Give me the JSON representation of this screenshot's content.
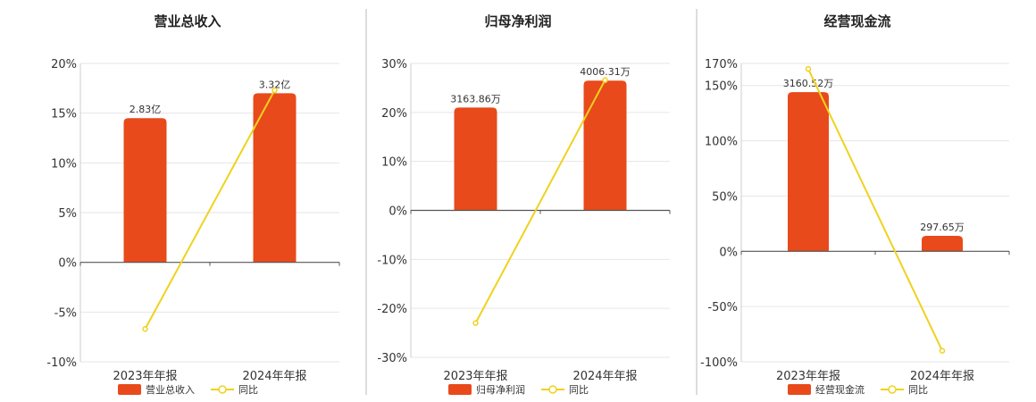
{
  "colors": {
    "bar": "#e84a1b",
    "line": "#f0d21e",
    "grid": "#e6e6e6",
    "axis": "#555555",
    "separator": "#bbbbbb"
  },
  "legend_line_label": "同比",
  "chart_data": [
    {
      "type": "bar",
      "title": "营业总收入",
      "categories": [
        "2023年年报",
        "2024年年报"
      ],
      "ylim": [
        -10,
        20
      ],
      "yticks": [
        -10,
        -5,
        0,
        5,
        10,
        15,
        20
      ],
      "ytick_labels": [
        "-10%",
        "-5%",
        "0%",
        "5%",
        "10%",
        "15%",
        "20%"
      ],
      "series": [
        {
          "name": "营业总收入",
          "kind": "bar",
          "values": [
            14.5,
            17.0
          ],
          "labels": [
            "2.83亿",
            "3.32亿"
          ]
        },
        {
          "name": "同比",
          "kind": "line",
          "values": [
            -6.7,
            17.3
          ]
        }
      ],
      "grid": true,
      "legend": "bottom"
    },
    {
      "type": "bar",
      "title": "归母净利润",
      "categories": [
        "2023年年报",
        "2024年年报"
      ],
      "ylim": [
        -30,
        30
      ],
      "yticks": [
        -30,
        -20,
        -10,
        0,
        10,
        20,
        30
      ],
      "ytick_labels": [
        "-30%",
        "-20%",
        "-10%",
        "0%",
        "10%",
        "20%",
        "30%"
      ],
      "series": [
        {
          "name": "归母净利润",
          "kind": "bar",
          "values": [
            21.0,
            26.5
          ],
          "labels": [
            "3163.86万",
            "4006.31万"
          ]
        },
        {
          "name": "同比",
          "kind": "line",
          "values": [
            -23.0,
            26.6
          ]
        }
      ],
      "grid": true,
      "legend": "bottom"
    },
    {
      "type": "bar",
      "title": "经营现金流",
      "categories": [
        "2023年年报",
        "2024年年报"
      ],
      "ylim": [
        -100,
        170
      ],
      "yticks": [
        -100,
        -50,
        0,
        50,
        100,
        150,
        170
      ],
      "ytick_labels": [
        "-100%",
        "-50%",
        "0%",
        "50%",
        "100%",
        "150%",
        "170%"
      ],
      "series": [
        {
          "name": "经营现金流",
          "kind": "bar",
          "values": [
            144,
            14
          ],
          "labels": [
            "3160.52万",
            "297.65万"
          ]
        },
        {
          "name": "同比",
          "kind": "line",
          "values": [
            165,
            -90
          ]
        }
      ],
      "grid": true,
      "legend": "bottom"
    }
  ]
}
